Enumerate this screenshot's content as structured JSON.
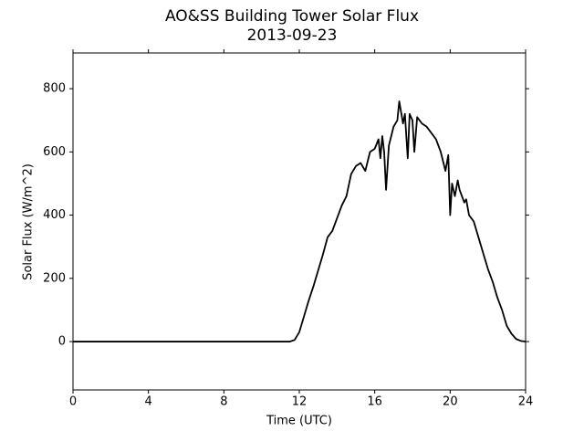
{
  "chart_data": {
    "type": "line",
    "title": "AO&SS Building Tower Solar Flux",
    "subtitle": "2013-09-23",
    "x_label": "Time (UTC)",
    "y_label": "Solar Flux (W/m^2)",
    "x": [
      0,
      4,
      8,
      11,
      11.5,
      11.75,
      12,
      12.25,
      12.5,
      12.75,
      13,
      13.25,
      13.5,
      13.75,
      14,
      14.25,
      14.5,
      14.75,
      15,
      15.25,
      15.5,
      15.75,
      16,
      16.2,
      16.3,
      16.4,
      16.5,
      16.6,
      16.75,
      17,
      17.2,
      17.3,
      17.5,
      17.6,
      17.75,
      17.85,
      18,
      18.1,
      18.25,
      18.5,
      18.75,
      19,
      19.25,
      19.5,
      19.75,
      19.9,
      20,
      20.1,
      20.25,
      20.4,
      20.5,
      20.75,
      20.85,
      21,
      21.25,
      21.5,
      21.75,
      22,
      22.25,
      22.5,
      22.75,
      23,
      23.25,
      23.5,
      23.75,
      24
    ],
    "series": [
      {
        "name": "Solar Flux",
        "color": "#000000",
        "values": [
          0,
          0,
          0,
          0,
          0,
          5,
          30,
          80,
          130,
          175,
          225,
          275,
          330,
          350,
          390,
          430,
          460,
          530,
          555,
          565,
          540,
          600,
          610,
          640,
          580,
          650,
          600,
          480,
          620,
          680,
          700,
          760,
          690,
          720,
          580,
          720,
          700,
          600,
          710,
          690,
          680,
          660,
          640,
          600,
          540,
          590,
          400,
          500,
          460,
          510,
          480,
          440,
          450,
          400,
          380,
          330,
          280,
          230,
          190,
          140,
          100,
          50,
          25,
          8,
          2,
          0
        ]
      }
    ],
    "xlim": [
      0,
      24
    ],
    "xticks": [
      0,
      4,
      8,
      12,
      16,
      20,
      24
    ],
    "ylim": [
      -153,
      913
    ],
    "yticks": [
      0,
      200,
      400,
      600,
      800
    ]
  }
}
